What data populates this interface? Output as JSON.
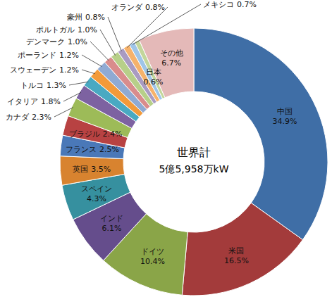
{
  "chart_data": {
    "type": "donut",
    "title": "世界計",
    "subtitle": "5億5,958万kW",
    "categories": [
      "中国",
      "米国",
      "ドイツ",
      "インド",
      "スペイン",
      "英国",
      "フランス",
      "ブラジル",
      "カナダ",
      "イタリア",
      "トルコ",
      "スウェーデン",
      "ポーランド",
      "デンマーク",
      "ポルトガル",
      "豪州",
      "オランダ",
      "メキシコ",
      "日本",
      "その他"
    ],
    "values": [
      34.9,
      16.5,
      10.4,
      6.1,
      4.3,
      3.5,
      2.5,
      2.4,
      2.3,
      1.8,
      1.3,
      1.2,
      1.2,
      1.0,
      1.0,
      0.8,
      0.8,
      0.7,
      0.6,
      6.7
    ],
    "value_labels": [
      "34.9%",
      "16.5%",
      "10.4%",
      "6.1%",
      "4.3%",
      "3.5%",
      "2.5%",
      "2.4%",
      "2.3%",
      "1.8%",
      "1.3%",
      "1.2%",
      "1.2%",
      "1.0%",
      "1.0%",
      "0.8%",
      "0.8%",
      "0.7%",
      "0.6%",
      "6.7%"
    ],
    "colors": [
      "#3f6ea6",
      "#a33b3b",
      "#8aa548",
      "#654d8c",
      "#36909f",
      "#d8832f",
      "#4a78b8",
      "#b84242",
      "#9dbb58",
      "#7d62a1",
      "#49a9c2",
      "#f29a3a",
      "#8faad3",
      "#d98c8c",
      "#b7cf89",
      "#a99bc2",
      "#f6b26b",
      "#9fc5e8",
      "#c3d69b",
      "#e4b9b8"
    ],
    "data_labels": true
  }
}
